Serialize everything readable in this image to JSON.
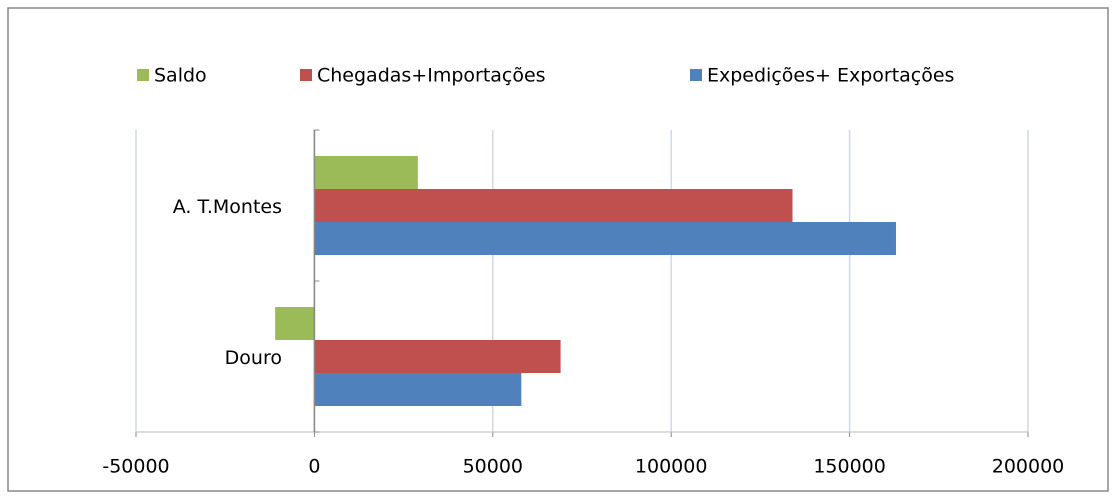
{
  "chart_data": {
    "type": "bar",
    "orientation": "horizontal",
    "categories": [
      "Douro",
      "A. T.Montes"
    ],
    "series": [
      {
        "name": "Saldo",
        "color": "#9bbb59",
        "values": [
          -11000,
          29000
        ]
      },
      {
        "name": "Chegadas+Importações",
        "color": "#c0504d",
        "values": [
          69000,
          134000
        ]
      },
      {
        "name": "Expedições+ Exportações",
        "color": "#4f81bd",
        "values": [
          58000,
          163000
        ]
      }
    ],
    "xlim": [
      -50000,
      200000
    ],
    "xticks": [
      -50000,
      0,
      50000,
      100000,
      150000,
      200000
    ],
    "grid": true,
    "legend": "top"
  }
}
